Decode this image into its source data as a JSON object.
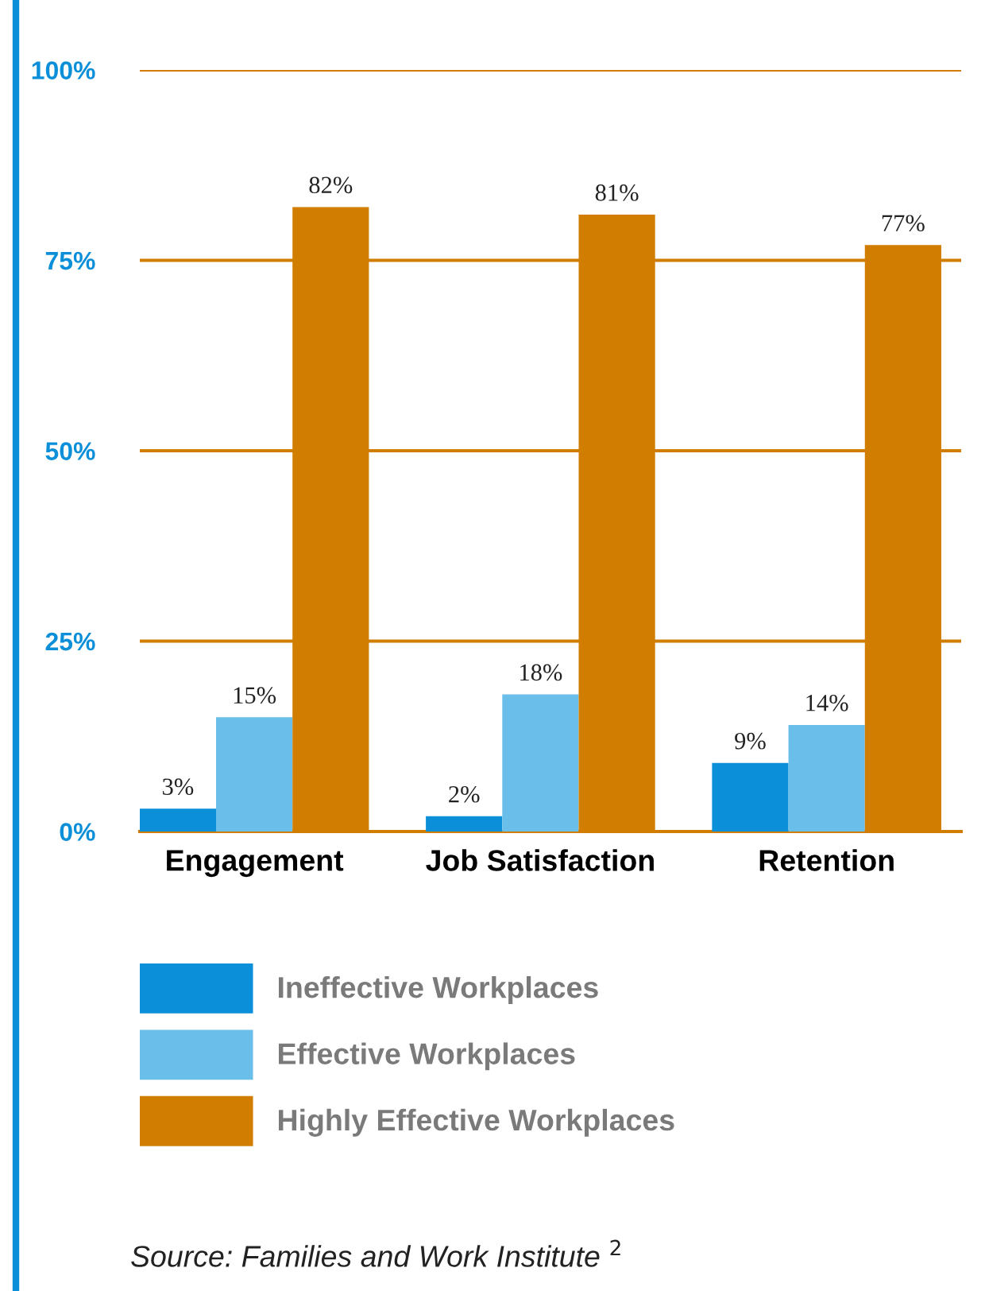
{
  "chart_data": {
    "type": "bar",
    "categories": [
      "Engagement",
      "Job Satisfaction",
      "Retention"
    ],
    "series": [
      {
        "name": "Ineffective Workplaces",
        "color": "#0a8fd8",
        "values": [
          3,
          2,
          9
        ],
        "value_labels": [
          "3%",
          "2%",
          "9%"
        ]
      },
      {
        "name": "Effective Workplaces",
        "color": "#69bfe9",
        "values": [
          15,
          18,
          14
        ],
        "value_labels": [
          "15%",
          "18%",
          "14%"
        ]
      },
      {
        "name": "Highly Effective Workplaces",
        "color": "#d07d00",
        "values": [
          82,
          81,
          77
        ],
        "value_labels": [
          "82%",
          "81%",
          "77%"
        ]
      }
    ],
    "ylim": [
      0,
      100
    ],
    "yticks": [
      {
        "value": 0,
        "label": "0%"
      },
      {
        "value": 25,
        "label": "25%"
      },
      {
        "value": 50,
        "label": "50%"
      },
      {
        "value": 75,
        "label": "75%"
      },
      {
        "value": 100,
        "label": "100%"
      }
    ],
    "grid": "y",
    "legend": "bottom",
    "annotations": [
      "Source: Families and Work Institute $^{2}$"
    ]
  }
}
